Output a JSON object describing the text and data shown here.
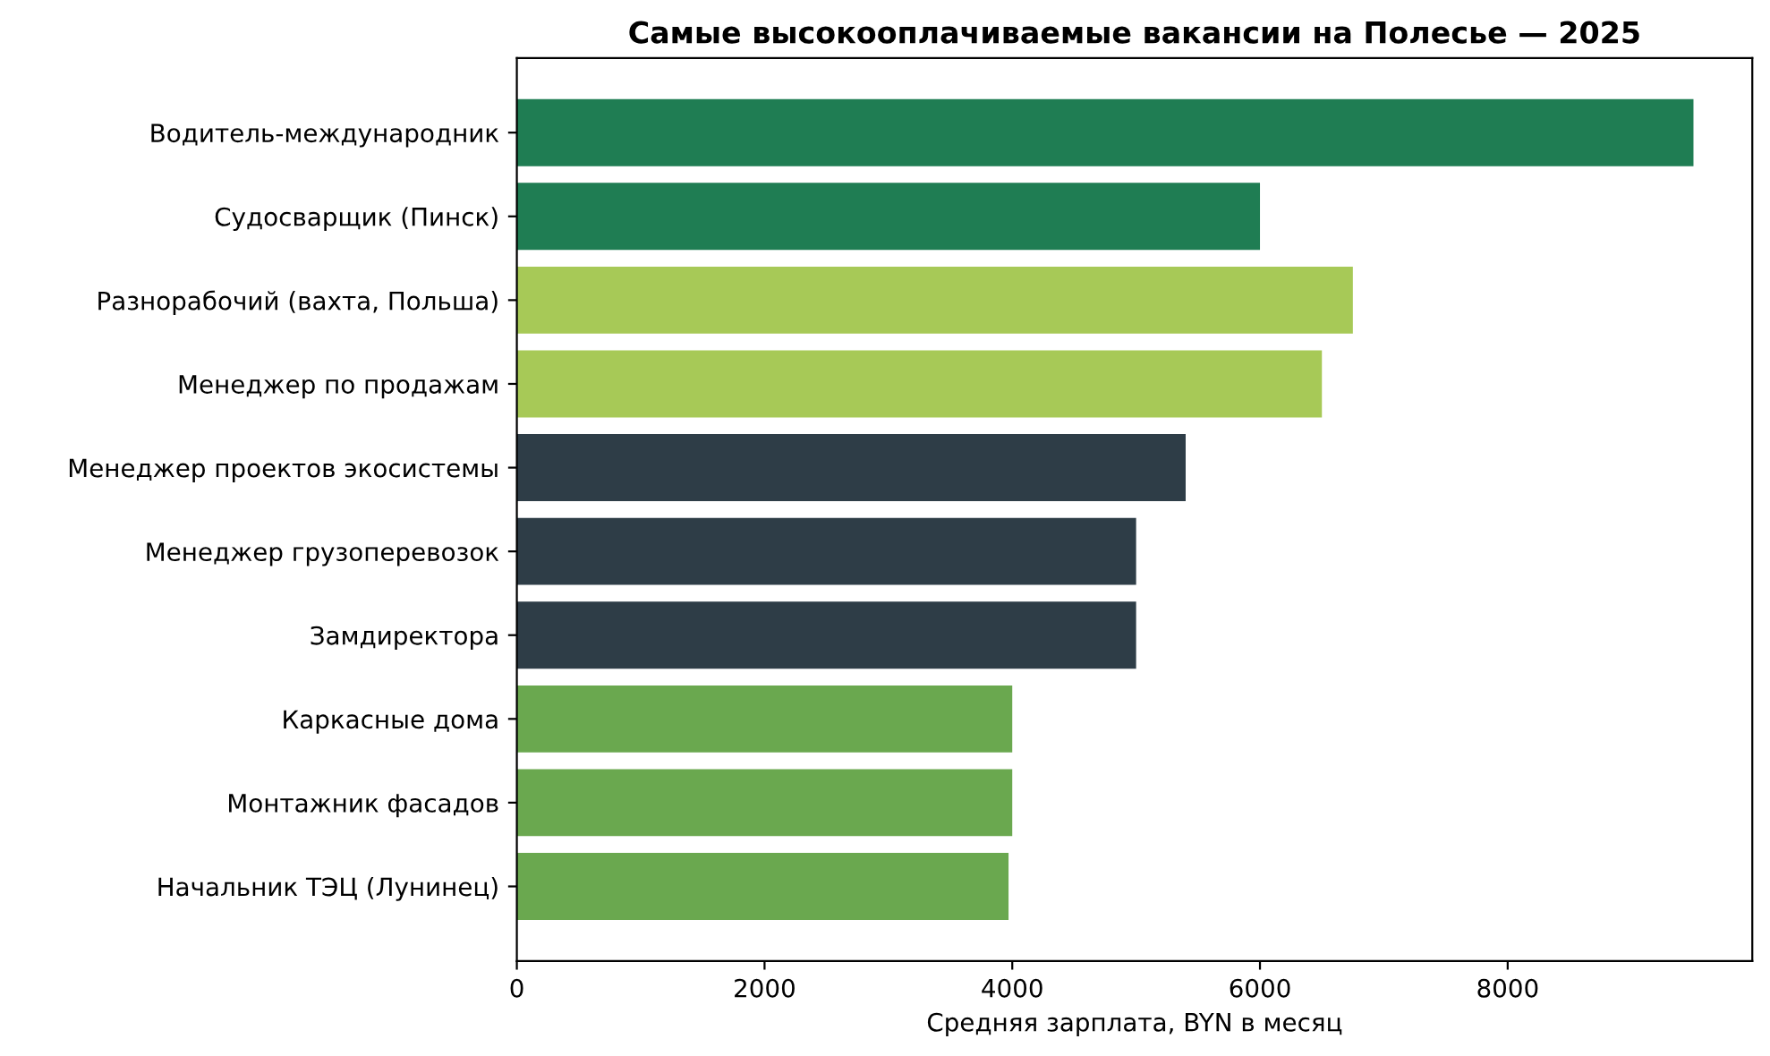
{
  "chart_data": {
    "type": "bar",
    "orientation": "horizontal",
    "title": "Самые высокооплачиваемые вакансии на Полесье — 2025",
    "xlabel": "Средняя зарплата, BYN в месяц",
    "categories": [
      "Водитель-международник",
      "Судосварщик (Пинск)",
      "Разнорабочий (вахта, Польша)",
      "Менеджер по продажам",
      "Менеджер проектов экосистемы",
      "Менеджер грузоперевозок",
      "Замдиректора",
      "Каркасные дома",
      "Монтажник фасадов",
      "Начальник ТЭЦ (Лунинец)"
    ],
    "values": [
      9500,
      6000,
      6750,
      6500,
      5400,
      5000,
      5000,
      4000,
      4000,
      3970
    ],
    "colors": [
      "#1f7d53",
      "#1f7d53",
      "#a7c957",
      "#a7c957",
      "#2e3d47",
      "#2e3d47",
      "#2e3d47",
      "#6aa84f",
      "#6aa84f",
      "#6aa84f"
    ],
    "xlim": [
      0,
      9975
    ],
    "xticks": [
      0,
      2000,
      4000,
      6000,
      8000
    ],
    "grid": false
  }
}
